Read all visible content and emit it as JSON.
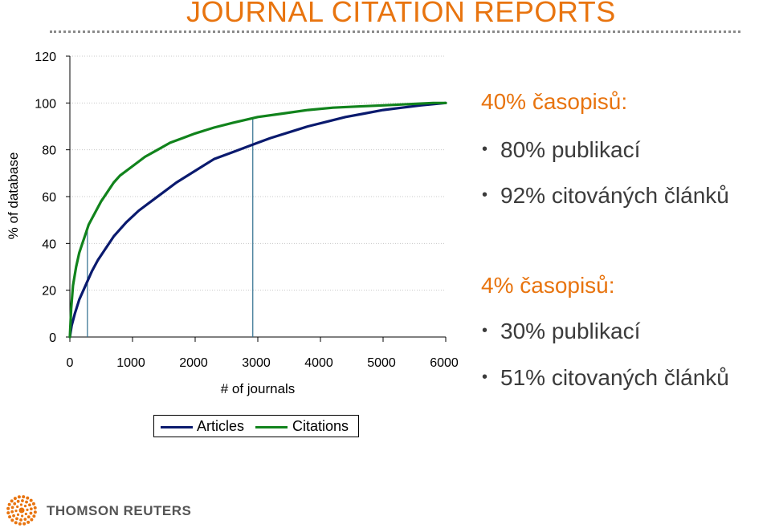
{
  "header": {
    "title": "JOURNAL CITATION REPORTS"
  },
  "chart_data": {
    "type": "line",
    "title": "",
    "xlabel": "# of journals",
    "ylabel": "% of database",
    "xlim": [
      0,
      6000
    ],
    "ylim": [
      0,
      120
    ],
    "xticks": [
      "0",
      "1000",
      "2000",
      "3000",
      "4000",
      "5000",
      "6000"
    ],
    "yticks": [
      "0",
      "20",
      "40",
      "60",
      "80",
      "100",
      "120"
    ],
    "grid": "horizontal dotted",
    "legend_position": "bottom",
    "series": [
      {
        "name": "Articles",
        "color": "#0A1A6E",
        "x": [
          0,
          30,
          80,
          150,
          250,
          350,
          450,
          550,
          700,
          900,
          1100,
          1300,
          1500,
          1700,
          2000,
          2300,
          2600,
          3000,
          3200,
          3500,
          3800,
          4100,
          4400,
          4700,
          5000,
          5300,
          5600,
          5800,
          6000
        ],
        "y": [
          0,
          5,
          10,
          16,
          22,
          28,
          33,
          37,
          43,
          49,
          54,
          58,
          62,
          66,
          71,
          76,
          79,
          83,
          85,
          87.5,
          90,
          92,
          94,
          95.5,
          97,
          98,
          99,
          99.5,
          100
        ]
      },
      {
        "name": "Citations",
        "color": "#11831C",
        "x": [
          0,
          20,
          50,
          100,
          150,
          200,
          250,
          300,
          400,
          500,
          600,
          700,
          800,
          1000,
          1200,
          1400,
          1600,
          1800,
          2000,
          2300,
          2600,
          3000,
          3400,
          3800,
          4200,
          4600,
          5000,
          5400,
          5800,
          6000
        ],
        "y": [
          0,
          12,
          22,
          30,
          36,
          40,
          44,
          48,
          53,
          58,
          62,
          66,
          69,
          73,
          77,
          80,
          83,
          85,
          87,
          89.5,
          91.5,
          94,
          95.5,
          97,
          98,
          98.5,
          99,
          99.5,
          100,
          100
        ]
      }
    ],
    "annotations": [
      {
        "type": "vertical-line",
        "x": 280
      },
      {
        "type": "vertical-line",
        "x": 2920
      }
    ]
  },
  "legend": {
    "articles": "Articles",
    "citations": "Citations"
  },
  "info": {
    "heading_40": "40% časopisů:",
    "b1": "80% publikací",
    "b2": "92% citováných článků",
    "heading_4": "4% časopisů:",
    "b3": "30% publikací",
    "b4": "51% citovaných článků",
    "bullet_glyph": "•"
  },
  "footer": {
    "logo_text": "THOMSON REUTERS"
  }
}
